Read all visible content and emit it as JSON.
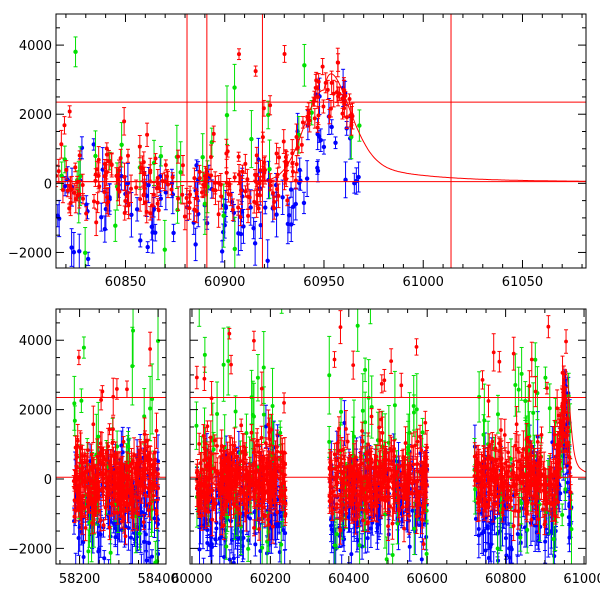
{
  "chart_data": [
    {
      "type": "scatter",
      "panel": "top",
      "title": "",
      "xlabel": "",
      "ylabel": "",
      "xlim": [
        60815,
        61082
      ],
      "ylim": [
        -2450,
        4900
      ],
      "xticks": [
        60850,
        60900,
        60950,
        61000,
        61050
      ],
      "xtick_labels": [
        "60850",
        "60900",
        "60950",
        "61000",
        "61050"
      ],
      "yticks": [
        -2000,
        0,
        2000,
        4000
      ],
      "ytick_labels": [
        "−2000",
        "0",
        "2000",
        "4000"
      ],
      "grid": false,
      "legend": "none",
      "vlines": [
        60881,
        60891,
        60919,
        61014
      ],
      "hlines": [
        2350,
        50
      ],
      "model_curve": {
        "t0": 60950,
        "peak": 2700,
        "rise": 10,
        "decay": 12,
        "base": 50
      },
      "series": [
        {
          "color": "#0000ff",
          "data_range": [
            60815,
            60968
          ],
          "values_summary": "scattered points mostly between -2400 and 800, error bars 200-700"
        },
        {
          "color": "#00e000",
          "data_range": [
            60815,
            60962
          ],
          "values_summary": "sparse points between -1500 and 4500"
        },
        {
          "color": "#ff0000",
          "data_range": [
            60815,
            60968
          ],
          "values_summary": "dense band near 0 with peak ~3200 at 60950"
        }
      ]
    },
    {
      "type": "scatter",
      "panel": "bottom",
      "title": "",
      "xlabel": "",
      "ylabel": "",
      "broken_x_axis": true,
      "segments": [
        {
          "xlim": [
            58140,
            58420
          ],
          "xticks": [
            58200,
            58400
          ],
          "xtick_labels": [
            "58200",
            "58400"
          ],
          "data_range": [
            58185,
            58400
          ]
        },
        {
          "xlim": [
            59995,
            61005
          ],
          "xticks": [
            60000,
            60200,
            60400,
            60600,
            60800,
            61000
          ],
          "xtick_labels": [
            "60000",
            "60200",
            "60400",
            "60600",
            "60800",
            "61000"
          ],
          "data_range": [
            [
              60010,
              60240
            ],
            [
              60350,
              60600
            ],
            [
              60720,
              60968
            ]
          ]
        }
      ],
      "ylim": [
        -2450,
        4900
      ],
      "yticks": [
        -2000,
        0,
        2000,
        4000
      ],
      "ytick_labels": [
        "−2000",
        "0",
        "2000",
        "4000"
      ],
      "grid": false,
      "legend": "none",
      "hlines": [
        2350,
        50
      ],
      "series": [
        {
          "color": "#0000ff"
        },
        {
          "color": "#00e000"
        },
        {
          "color": "#ff0000"
        }
      ]
    }
  ]
}
